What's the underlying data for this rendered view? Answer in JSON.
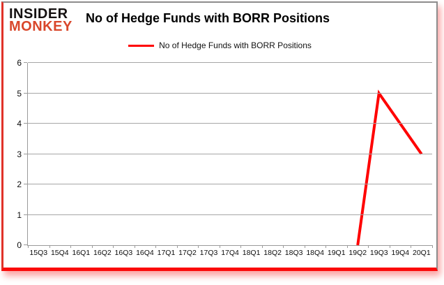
{
  "logo": {
    "line1": "INSIDER",
    "line2": "MONKEY"
  },
  "header": {
    "title": "No of Hedge Funds with BORR Positions"
  },
  "legend": {
    "label": "No of Hedge Funds with BORR Positions"
  },
  "colors": {
    "series": "#ff0000",
    "logo_black": "#151111",
    "logo_red": "#d9472b",
    "grid": "#a6a6a6",
    "axis": "#9a9a9a",
    "frame_red": "#fb0a0a",
    "frame_grey": "#8d8d8d"
  },
  "chart_data": {
    "type": "line",
    "title": "No of Hedge Funds with BORR Positions",
    "xlabel": "",
    "ylabel": "",
    "categories": [
      "15Q3",
      "15Q4",
      "16Q1",
      "16Q2",
      "16Q3",
      "16Q4",
      "17Q1",
      "17Q2",
      "17Q3",
      "17Q4",
      "18Q1",
      "18Q2",
      "18Q3",
      "18Q4",
      "19Q1",
      "19Q2",
      "19Q3",
      "19Q4",
      "20Q1"
    ],
    "series": [
      {
        "name": "No of Hedge Funds with BORR Positions",
        "color": "#ff0000",
        "values": [
          null,
          null,
          null,
          null,
          null,
          null,
          null,
          null,
          null,
          null,
          null,
          null,
          null,
          null,
          null,
          0,
          5,
          4,
          3
        ]
      }
    ],
    "ylim": [
      0,
      6
    ],
    "yticks": [
      0,
      1,
      2,
      3,
      4,
      5,
      6
    ],
    "grid": true,
    "legend_position": "top-center"
  }
}
